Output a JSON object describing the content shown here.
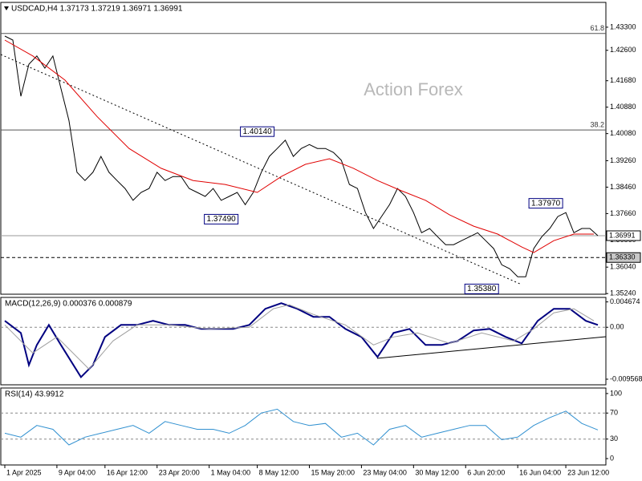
{
  "chart_data": [
    {
      "type": "line",
      "title": "USDCAD,H4  1.37173 1.37219 1.36971 1.36991",
      "watermark": "Action Forex",
      "xlim": [
        -1,
        150
      ],
      "ylim": [
        1.3522,
        1.4405
      ],
      "x": [
        0,
        2,
        4,
        6,
        8,
        10,
        12,
        14,
        16,
        18,
        20,
        22,
        24,
        26,
        28,
        30,
        32,
        34,
        36,
        38,
        40,
        42,
        44,
        46,
        48,
        50,
        52,
        54,
        56,
        58,
        60,
        62,
        64,
        66,
        68,
        70,
        72,
        74,
        76,
        78,
        80,
        82,
        84,
        86,
        88,
        90,
        92,
        94,
        96,
        98,
        100,
        102,
        104,
        106,
        108,
        110,
        112,
        114,
        116,
        118,
        120,
        122,
        124,
        126,
        128,
        130,
        132,
        134,
        136,
        138,
        140,
        142,
        144,
        146,
        148
      ],
      "yticks": [
        {
          "value": 1.433,
          "label": "1.43300"
        },
        {
          "value": 1.426,
          "label": "1.42600"
        },
        {
          "value": 1.4168,
          "label": "1.41680"
        },
        {
          "value": 1.4088,
          "label": "1.40880"
        },
        {
          "value": 1.4008,
          "label": "1.40080"
        },
        {
          "value": 1.3926,
          "label": "1.39260"
        },
        {
          "value": 1.3846,
          "label": "1.38460"
        },
        {
          "value": 1.3766,
          "label": "1.37660"
        },
        {
          "value": 1.3686,
          "label": "1.36860"
        },
        {
          "value": 1.3604,
          "label": "1.36040"
        },
        {
          "value": 1.3524,
          "label": "1.35240"
        }
      ],
      "series": [
        {
          "name": "USDCAD",
          "color": "#000000",
          "line_width": 1,
          "values": [
            1.4303,
            1.4291,
            1.4121,
            1.4218,
            1.4243,
            1.4206,
            1.4243,
            1.4145,
            1.4048,
            1.3891,
            1.3866,
            1.3891,
            1.3939,
            1.3891,
            1.3866,
            1.3842,
            1.3806,
            1.383,
            1.3842,
            1.3891,
            1.3866,
            1.3878,
            1.3878,
            1.3842,
            1.383,
            1.3818,
            1.3842,
            1.3806,
            1.3818,
            1.383,
            1.3793,
            1.383,
            1.3891,
            1.3939,
            1.3963,
            1.3988,
            1.3939,
            1.3963,
            1.3975,
            1.3963,
            1.3963,
            1.3951,
            1.3927,
            1.3854,
            1.3842,
            1.3769,
            1.3721,
            1.3757,
            1.3793,
            1.3842,
            1.3818,
            1.3769,
            1.3708,
            1.3721,
            1.3696,
            1.3672,
            1.3672,
            1.3684,
            1.3696,
            1.3708,
            1.3684,
            1.366,
            1.3611,
            1.3599,
            1.3575,
            1.3575,
            1.366,
            1.3696,
            1.3721,
            1.3757,
            1.3769,
            1.3708,
            1.3721,
            1.3721,
            1.36991
          ]
        },
        {
          "name": "MA",
          "color": "#e00000",
          "line_width": 1,
          "x": [
            0,
            7,
            15,
            23,
            31,
            39,
            47,
            55,
            63,
            69,
            75,
            81,
            87,
            93,
            99,
            105,
            111,
            117,
            123,
            129,
            132,
            137,
            142,
            147
          ],
          "values": [
            1.4291,
            1.4243,
            1.417,
            1.406,
            1.3963,
            1.3903,
            1.3866,
            1.3854,
            1.383,
            1.3878,
            1.3915,
            1.3932,
            1.3903,
            1.3866,
            1.3835,
            1.3806,
            1.3762,
            1.3728,
            1.3704,
            1.3665,
            1.3648,
            1.3684,
            1.3704,
            1.3704
          ]
        }
      ],
      "levels": [
        {
          "value": 1.4311,
          "label": "61.8"
        },
        {
          "value": 1.4019,
          "label": "38.2"
        }
      ],
      "price_lines": [
        {
          "value": 1.36991,
          "label": "1.36991",
          "style": "solid"
        },
        {
          "value": 1.3633,
          "label": "1.36330",
          "style": "dashed"
        }
      ],
      "annotations": [
        {
          "x": 63,
          "value": 1.4014,
          "label": "1.40140"
        },
        {
          "x": 54,
          "value": 1.3749,
          "label": "1.37490"
        },
        {
          "x": 135,
          "value": 1.3797,
          "label": "1.37970"
        },
        {
          "x": 119,
          "value": 1.3538,
          "label": "1.35380"
        }
      ]
    },
    {
      "type": "line",
      "title": "MACD(12,26,9) 0.000376 0.000879",
      "xlim": [
        -1,
        150
      ],
      "ylim": [
        -0.0106,
        0.0055
      ],
      "yticks": [
        {
          "value": 0.004674,
          "label": "0.004674"
        },
        {
          "value": 0,
          "label": "0.00"
        },
        {
          "value": -0.009568,
          "label": "-0.009568"
        }
      ],
      "levels": [
        0
      ],
      "series": [
        {
          "name": "MACD",
          "color": "#000080",
          "line_width": 2,
          "x": [
            0,
            4,
            6,
            8,
            11,
            14,
            19,
            22,
            25,
            29,
            33,
            37,
            41,
            45,
            49,
            53,
            57,
            61,
            65,
            69,
            73,
            77,
            81,
            85,
            89,
            93,
            97,
            101,
            105,
            109,
            113,
            117,
            121,
            125,
            129,
            133,
            137,
            141,
            145,
            148
          ],
          "values": [
            0.00118,
            -0.00104,
            -0.00696,
            -0.00326,
            0.00044,
            -0.00326,
            -0.00918,
            -0.00696,
            -0.00178,
            0.00044,
            0.00044,
            0.00118,
            0.00044,
            0.00044,
            -0.0003,
            -0.0003,
            -0.0003,
            0.00044,
            0.0034,
            0.00444,
            0.0034,
            0.00192,
            0.00192,
            -0.0003,
            -0.00178,
            -0.00548,
            -0.00104,
            -0.0003,
            -0.00326,
            -0.00326,
            -0.00252,
            -0.00059,
            -0.0003,
            -0.00178,
            -0.00296,
            0.00118,
            0.0034,
            0.0034,
            0.00118,
            0.00044
          ]
        },
        {
          "name": "Signal",
          "color": "#a0a0a0",
          "line_width": 1,
          "x": [
            0,
            7,
            13,
            21,
            27,
            33,
            41,
            51,
            61,
            67,
            71,
            77,
            85,
            92,
            97,
            103,
            111,
            119,
            127,
            132,
            137,
            142,
            147
          ],
          "values": [
            0.00044,
            -0.00474,
            -0.00178,
            -0.0077,
            -0.00252,
            0.00044,
            0.00044,
            -0.0003,
            0,
            0.0034,
            0.00414,
            0.00237,
            0.00044,
            -0.00326,
            -0.00178,
            -0.00104,
            -0.00296,
            -0.00104,
            -0.00252,
            -0.0003,
            0.00266,
            0.0034,
            0.00118
          ]
        }
      ]
    },
    {
      "type": "line",
      "title": "RSI(14) 43.9912",
      "xlim": [
        -1,
        150
      ],
      "ylim": [
        -9.8,
        108.5
      ],
      "yticks": [
        100,
        70,
        30,
        0
      ],
      "levels": [
        70,
        30
      ],
      "xticks": [
        {
          "value": 0,
          "label": "1 Apr 2025"
        },
        {
          "value": 13,
          "label": "9 Apr 04:00"
        },
        {
          "value": 25,
          "label": "16 Apr 12:00"
        },
        {
          "value": 38,
          "label": "23 Apr 20:00"
        },
        {
          "value": 51,
          "label": "1 May 04:00"
        },
        {
          "value": 63,
          "label": "8 May 12:00"
        },
        {
          "value": 76,
          "label": "15 May 20:00"
        },
        {
          "value": 89,
          "label": "23 May 04:00"
        },
        {
          "value": 102,
          "label": "30 May 12:00"
        },
        {
          "value": 115,
          "label": "6 Jun 20:00"
        },
        {
          "value": 128,
          "label": "16 Jun 04:00"
        },
        {
          "value": 140,
          "label": "23 Jun 12:00"
        }
      ],
      "series": [
        {
          "name": "RSI",
          "color": "#3090d0",
          "line_width": 1,
          "x": [
            0,
            4,
            8,
            12,
            16,
            20,
            24,
            28,
            32,
            36,
            40,
            44,
            48,
            52,
            56,
            60,
            64,
            68,
            72,
            76,
            80,
            84,
            88,
            92,
            96,
            100,
            104,
            108,
            112,
            116,
            120,
            124,
            128,
            132,
            136,
            140,
            144,
            148
          ],
          "values": [
            39,
            33,
            51,
            45,
            21,
            33,
            39,
            45,
            51,
            39,
            57,
            51,
            45,
            45,
            39,
            51,
            70,
            76,
            57,
            51,
            54,
            33,
            39,
            21,
            45,
            51,
            33,
            39,
            45,
            51,
            51,
            29,
            33,
            51,
            63,
            73,
            54,
            44
          ]
        }
      ]
    }
  ]
}
